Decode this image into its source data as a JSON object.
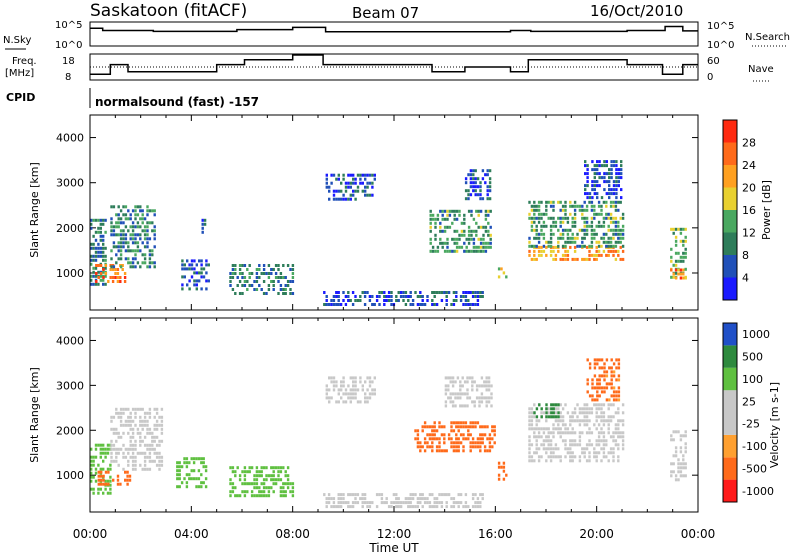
{
  "header": {
    "station": "Saskatoon (fitACF)",
    "beam": "Beam 07",
    "date": "16/Oct/2010"
  },
  "strip_labels": {
    "nsky": "N.Sky",
    "nsky_top": "10^5",
    "nsky_bottom": "10^0",
    "nsearch": "N.Search",
    "nsearch_top": "10^5",
    "nsearch_bottom": "10^0",
    "freq_line1": "Freq.",
    "freq_line2": "[MHz]",
    "freq_top": "18",
    "freq_bottom": "8",
    "nave": "Nave",
    "nave_top": "60",
    "nave_bottom": "0",
    "cpid": "CPID",
    "mode": "normalsound (fast) -157"
  },
  "colors": {
    "power": [
      "#1a1aff",
      "#2050b8",
      "#2e7d5a",
      "#4aa860",
      "#e8d030",
      "#ffa020",
      "#ff6a1a",
      "#ff2a10"
    ],
    "velocity": [
      "#ff1a1a",
      "#ff6a1a",
      "#ffa030",
      "#c8c8c8",
      "#c8c8c8",
      "#5fc040",
      "#2e8a3e",
      "#2050c8"
    ],
    "gray": "#c8c8c8"
  },
  "chart_data": [
    {
      "type": "heatmap",
      "title": "Power",
      "xlabel": "Time UT",
      "ylabel": "Slant Range [km]",
      "xlim": [
        "00:00",
        "24:00"
      ],
      "ylim": [
        180,
        4500
      ],
      "x_ticks": [
        "00:00",
        "04:00",
        "08:00",
        "12:00",
        "16:00",
        "20:00",
        "00:00"
      ],
      "y_ticks": [
        "1000",
        "2000",
        "3000",
        "4000"
      ],
      "y_tick_values": [
        1000,
        2000,
        3000,
        4000
      ],
      "colorbar": {
        "label": "Power [dB]",
        "ticks": [
          "4",
          "8",
          "12",
          "16",
          "20",
          "24",
          "28"
        ],
        "range": [
          0,
          32
        ]
      },
      "regions": [
        {
          "t0": 0.0,
          "t1": 0.6,
          "r0": 700,
          "r1": 2200,
          "v": 10
        },
        {
          "t0": 0.2,
          "t1": 1.4,
          "r0": 800,
          "r1": 1200,
          "v": 26
        },
        {
          "t0": 0.8,
          "t1": 2.6,
          "r0": 1100,
          "r1": 2500,
          "v": 10
        },
        {
          "t0": 3.6,
          "t1": 4.7,
          "r0": 600,
          "r1": 1300,
          "v": 6
        },
        {
          "t0": 5.5,
          "t1": 8.0,
          "r0": 500,
          "r1": 1200,
          "v": 10
        },
        {
          "t0": 4.4,
          "t1": 4.5,
          "r0": 1900,
          "r1": 2200,
          "v": 6
        },
        {
          "t0": 9.2,
          "t1": 15.5,
          "r0": 300,
          "r1": 600,
          "v": 6
        },
        {
          "t0": 9.3,
          "t1": 11.2,
          "r0": 2600,
          "r1": 3200,
          "v": 6
        },
        {
          "t0": 13.4,
          "t1": 15.8,
          "r0": 1500,
          "r1": 2400,
          "v": 12
        },
        {
          "t0": 14.8,
          "t1": 15.8,
          "r0": 2600,
          "r1": 3300,
          "v": 6
        },
        {
          "t0": 16.1,
          "t1": 16.4,
          "r0": 900,
          "r1": 1300,
          "v": 18
        },
        {
          "t0": 17.3,
          "t1": 21.0,
          "r0": 1300,
          "r1": 1600,
          "v": 22
        },
        {
          "t0": 17.3,
          "t1": 21.0,
          "r0": 1600,
          "r1": 2600,
          "v": 12
        },
        {
          "t0": 19.5,
          "t1": 21.0,
          "r0": 2700,
          "r1": 3500,
          "v": 6
        },
        {
          "t0": 22.9,
          "t1": 23.5,
          "r0": 900,
          "r1": 2000,
          "v": 14
        },
        {
          "t0": 22.9,
          "t1": 23.5,
          "r0": 900,
          "r1": 1100,
          "v": 24
        }
      ]
    },
    {
      "type": "heatmap",
      "title": "Velocity",
      "xlabel": "Time UT",
      "ylabel": "Slant Range [km]",
      "xlim": [
        "00:00",
        "24:00"
      ],
      "ylim": [
        180,
        4500
      ],
      "x_ticks": [
        "00:00",
        "04:00",
        "08:00",
        "12:00",
        "16:00",
        "20:00",
        "00:00"
      ],
      "y_ticks": [
        "1000",
        "2000",
        "3000",
        "4000"
      ],
      "y_tick_values": [
        1000,
        2000,
        3000,
        4000
      ],
      "colorbar": {
        "label": "Velocity [m s-1]",
        "ticks": [
          "1000",
          "500",
          "100",
          "25",
          "-25",
          "-100",
          "-500",
          "-1000"
        ]
      },
      "regions": [
        {
          "t0": 0.0,
          "t1": 0.8,
          "r0": 600,
          "r1": 1700,
          "v": 50
        },
        {
          "t0": 0.3,
          "t1": 1.6,
          "r0": 800,
          "r1": 1100,
          "v": -300
        },
        {
          "t0": 0.8,
          "t1": 2.8,
          "r0": 1100,
          "r1": 2500,
          "v": 0
        },
        {
          "t0": 3.4,
          "t1": 4.6,
          "r0": 700,
          "r1": 1400,
          "v": 60
        },
        {
          "t0": 5.5,
          "t1": 8.0,
          "r0": 500,
          "r1": 1200,
          "v": 70
        },
        {
          "t0": 9.2,
          "t1": 15.5,
          "r0": 300,
          "r1": 600,
          "v": 0
        },
        {
          "t0": 9.3,
          "t1": 11.2,
          "r0": 2600,
          "r1": 3200,
          "v": 0
        },
        {
          "t0": 12.8,
          "t1": 16.0,
          "r0": 1500,
          "r1": 2200,
          "v": -200
        },
        {
          "t0": 14.0,
          "t1": 15.8,
          "r0": 2500,
          "r1": 3200,
          "v": 0
        },
        {
          "t0": 16.1,
          "t1": 16.4,
          "r0": 900,
          "r1": 1300,
          "v": -150
        },
        {
          "t0": 17.3,
          "t1": 21.0,
          "r0": 1300,
          "r1": 2600,
          "v": 0
        },
        {
          "t0": 19.6,
          "t1": 20.9,
          "r0": 2700,
          "r1": 3600,
          "v": -150
        },
        {
          "t0": 17.5,
          "t1": 18.5,
          "r0": 2300,
          "r1": 2600,
          "v": 300
        },
        {
          "t0": 22.9,
          "t1": 23.5,
          "r0": 900,
          "r1": 2000,
          "v": 0
        }
      ]
    }
  ],
  "frequency_mhz": [
    {
      "t0": 0.0,
      "t1": 0.8,
      "v": 10
    },
    {
      "t0": 0.8,
      "t1": 1.5,
      "v": 14
    },
    {
      "t0": 1.5,
      "t1": 5.0,
      "v": 11
    },
    {
      "t0": 5.0,
      "t1": 6.1,
      "v": 14
    },
    {
      "t0": 6.1,
      "t1": 8.0,
      "v": 16
    },
    {
      "t0": 8.0,
      "t1": 9.2,
      "v": 18
    },
    {
      "t0": 9.2,
      "t1": 13.5,
      "v": 14
    },
    {
      "t0": 13.5,
      "t1": 14.8,
      "v": 11
    },
    {
      "t0": 14.8,
      "t1": 16.6,
      "v": 13
    },
    {
      "t0": 16.6,
      "t1": 17.3,
      "v": 11
    },
    {
      "t0": 17.3,
      "t1": 21.2,
      "v": 16
    },
    {
      "t0": 21.2,
      "t1": 22.6,
      "v": 14
    },
    {
      "t0": 22.6,
      "t1": 23.4,
      "v": 10
    },
    {
      "t0": 23.4,
      "t1": 24.0,
      "v": 14
    }
  ],
  "nsky_log": [
    {
      "t0": 0.0,
      "t1": 0.5,
      "v": 3.8
    },
    {
      "t0": 0.5,
      "t1": 2.5,
      "v": 3.3
    },
    {
      "t0": 2.5,
      "t1": 5.8,
      "v": 3.1
    },
    {
      "t0": 5.8,
      "t1": 8.0,
      "v": 3.5
    },
    {
      "t0": 8.0,
      "t1": 9.3,
      "v": 4.0
    },
    {
      "t0": 9.3,
      "t1": 16.6,
      "v": 3.0
    },
    {
      "t0": 16.6,
      "t1": 17.4,
      "v": 3.3
    },
    {
      "t0": 17.4,
      "t1": 21.2,
      "v": 3.1
    },
    {
      "t0": 21.2,
      "t1": 22.7,
      "v": 3.3
    },
    {
      "t0": 22.7,
      "t1": 23.4,
      "v": 4.2
    },
    {
      "t0": 23.4,
      "t1": 24.0,
      "v": 3.2
    }
  ],
  "nave": 30
}
